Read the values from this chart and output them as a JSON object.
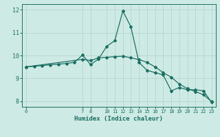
{
  "xlabel": "Humidex (Indice chaleur)",
  "ylabel": "",
  "background_color": "#ceeae4",
  "grid_color": "#b8d8d2",
  "line_color": "#1a6e62",
  "plot_bg": "#ceeae4",
  "xlim": [
    -0.5,
    23.5
  ],
  "ylim": [
    7.75,
    12.25
  ],
  "yticks": [
    8,
    9,
    10,
    11,
    12
  ],
  "xticks": [
    0,
    7,
    8,
    10,
    11,
    12,
    13,
    14,
    15,
    16,
    17,
    18,
    19,
    20,
    21,
    22,
    23
  ],
  "line1_x": [
    0,
    1,
    2,
    3,
    4,
    5,
    6,
    7,
    8,
    9,
    10,
    11,
    12,
    13,
    14,
    15,
    16,
    17,
    18,
    19,
    20,
    21,
    22,
    23
  ],
  "line1_y": [
    9.5,
    9.53,
    9.56,
    9.59,
    9.62,
    9.65,
    9.7,
    10.02,
    9.6,
    9.85,
    10.4,
    10.65,
    11.95,
    11.25,
    9.7,
    9.35,
    9.25,
    9.15,
    8.45,
    8.6,
    8.5,
    8.5,
    8.45,
    7.95
  ],
  "line2_x": [
    0,
    7,
    8,
    9,
    10,
    11,
    12,
    13,
    14,
    15,
    16,
    17,
    18,
    19,
    20,
    21,
    22,
    23
  ],
  "line2_y": [
    9.5,
    9.83,
    9.78,
    9.9,
    9.92,
    9.95,
    9.97,
    9.9,
    9.82,
    9.7,
    9.5,
    9.25,
    9.05,
    8.75,
    8.55,
    8.42,
    8.28,
    7.98
  ]
}
